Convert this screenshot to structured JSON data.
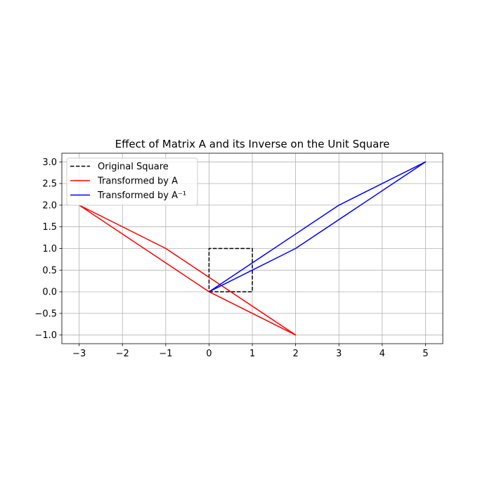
{
  "chart_data": {
    "type": "line",
    "title": "Effect of Matrix A and its Inverse on the Unit Square",
    "xlabel": "",
    "ylabel": "",
    "xlim": [
      -3.4,
      5.4
    ],
    "ylim": [
      -1.2,
      3.2
    ],
    "xticks": [
      -3,
      -2,
      -1,
      0,
      1,
      2,
      3,
      4,
      5
    ],
    "yticks": [
      -1.0,
      -0.5,
      0.0,
      0.5,
      1.0,
      1.5,
      2.0,
      2.5,
      3.0
    ],
    "xtick_labels": [
      "−3",
      "−2",
      "−1",
      "0",
      "1",
      "2",
      "3",
      "4",
      "5"
    ],
    "ytick_labels": [
      "−1.0",
      "−0.5",
      "0.0",
      "0.5",
      "1.0",
      "1.5",
      "2.0",
      "2.5",
      "3.0"
    ],
    "grid": true,
    "legend_position": "top-left",
    "series": [
      {
        "name": "Original Square",
        "color": "#000000",
        "dash": "dashed",
        "points": [
          [
            0,
            0
          ],
          [
            1,
            0
          ],
          [
            1,
            1
          ],
          [
            0,
            1
          ],
          [
            0,
            0
          ]
        ]
      },
      {
        "name": "Transformed by A",
        "color": "#ff0000",
        "dash": "solid",
        "points": [
          [
            0,
            0
          ],
          [
            2,
            -1
          ],
          [
            -1,
            1
          ],
          [
            -3,
            2
          ],
          [
            0,
            0
          ]
        ]
      },
      {
        "name": "Transformed by A⁻¹",
        "color": "#0000ff",
        "dash": "solid",
        "points": [
          [
            0,
            0
          ],
          [
            2,
            1
          ],
          [
            5,
            3
          ],
          [
            3,
            2
          ],
          [
            0,
            0
          ]
        ]
      }
    ]
  }
}
